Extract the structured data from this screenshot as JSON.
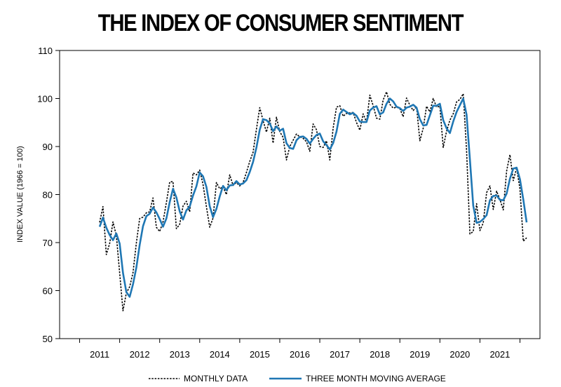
{
  "title": "THE INDEX OF CONSUMER SENTIMENT",
  "chart_data": {
    "type": "line",
    "title": "THE INDEX OF CONSUMER SENTIMENT",
    "xlabel": "",
    "ylabel": "INDEX VALUE (1966 = 100)",
    "ylim": [
      50,
      110
    ],
    "yticks": [
      50,
      60,
      70,
      80,
      90,
      100,
      110
    ],
    "xlim": [
      2010.0,
      2022.0
    ],
    "xticks": [
      "2011",
      "2012",
      "2013",
      "2014",
      "2015",
      "2016",
      "2017",
      "2018",
      "2019",
      "2020",
      "2021"
    ],
    "grid": false,
    "legend_position": "bottom",
    "x": [
      2011.0,
      2011.083,
      2011.167,
      2011.25,
      2011.333,
      2011.417,
      2011.5,
      2011.583,
      2011.667,
      2011.75,
      2011.833,
      2011.917,
      2012.0,
      2012.083,
      2012.167,
      2012.25,
      2012.333,
      2012.417,
      2012.5,
      2012.583,
      2012.667,
      2012.75,
      2012.833,
      2012.917,
      2013.0,
      2013.083,
      2013.167,
      2013.25,
      2013.333,
      2013.417,
      2013.5,
      2013.583,
      2013.667,
      2013.75,
      2013.833,
      2013.917,
      2014.0,
      2014.083,
      2014.167,
      2014.25,
      2014.333,
      2014.417,
      2014.5,
      2014.583,
      2014.667,
      2014.75,
      2014.833,
      2014.917,
      2015.0,
      2015.083,
      2015.167,
      2015.25,
      2015.333,
      2015.417,
      2015.5,
      2015.583,
      2015.667,
      2015.75,
      2015.833,
      2015.917,
      2016.0,
      2016.083,
      2016.167,
      2016.25,
      2016.333,
      2016.417,
      2016.5,
      2016.583,
      2016.667,
      2016.75,
      2016.833,
      2016.917,
      2017.0,
      2017.083,
      2017.167,
      2017.25,
      2017.333,
      2017.417,
      2017.5,
      2017.583,
      2017.667,
      2017.75,
      2017.833,
      2017.917,
      2018.0,
      2018.083,
      2018.167,
      2018.25,
      2018.333,
      2018.417,
      2018.5,
      2018.583,
      2018.667,
      2018.75,
      2018.833,
      2018.917,
      2019.0,
      2019.083,
      2019.167,
      2019.25,
      2019.333,
      2019.417,
      2019.5,
      2019.583,
      2019.667,
      2019.75,
      2019.833,
      2019.917,
      2020.0,
      2020.083,
      2020.167,
      2020.25,
      2020.333,
      2020.417,
      2020.5,
      2020.583,
      2020.667,
      2020.75,
      2020.833,
      2020.917,
      2021.0,
      2021.083,
      2021.167,
      2021.25,
      2021.333,
      2021.417,
      2021.5,
      2021.583,
      2021.667
    ],
    "series": [
      {
        "name": "MONTHLY DATA",
        "style": "dotted",
        "color": "#000000",
        "values": [
          74.2,
          77.5,
          67.5,
          69.8,
          74.3,
          71.5,
          63.7,
          55.8,
          59.5,
          60.8,
          63.7,
          69.9,
          75.0,
          75.3,
          76.2,
          76.4,
          79.3,
          73.2,
          72.3,
          74.3,
          78.3,
          82.6,
          82.7,
          72.9,
          73.8,
          77.6,
          78.6,
          76.4,
          84.5,
          84.1,
          85.1,
          82.1,
          77.5,
          73.2,
          75.1,
          82.5,
          81.2,
          81.6,
          80.0,
          84.1,
          81.9,
          82.5,
          81.8,
          82.5,
          84.6,
          86.9,
          88.8,
          93.6,
          98.1,
          95.4,
          93.0,
          95.9,
          90.7,
          96.1,
          93.1,
          91.9,
          87.2,
          90.0,
          91.3,
          92.6,
          92.0,
          91.7,
          91.0,
          89.0,
          94.7,
          93.5,
          90.0,
          89.8,
          91.2,
          87.2,
          93.8,
          98.2,
          98.5,
          96.3,
          96.9,
          97.0,
          97.1,
          95.0,
          93.4,
          96.8,
          95.1,
          100.7,
          98.5,
          95.9,
          95.7,
          99.7,
          101.4,
          98.8,
          98.0,
          98.2,
          97.9,
          96.2,
          100.1,
          98.6,
          97.5,
          98.3,
          91.2,
          93.8,
          98.4,
          97.2,
          100.0,
          98.2,
          98.4,
          89.8,
          93.2,
          95.5,
          96.8,
          99.3,
          99.8,
          101.0,
          89.1,
          71.8,
          72.3,
          78.1,
          72.5,
          74.1,
          80.4,
          81.8,
          76.9,
          80.7,
          79.0,
          76.8,
          84.9,
          88.3,
          82.9,
          85.5,
          81.2,
          70.3,
          71.0
        ]
      },
      {
        "name": "THREE MONTH MOVING AVERAGE",
        "style": "solid",
        "color": "#1f77b4",
        "values": [
          73.3,
          75.2,
          73.1,
          71.6,
          70.5,
          71.9,
          69.8,
          63.7,
          59.7,
          58.7,
          61.3,
          64.8,
          69.5,
          73.4,
          75.5,
          76.0,
          77.3,
          76.3,
          74.9,
          73.3,
          75.0,
          78.4,
          81.2,
          79.4,
          76.5,
          74.8,
          76.7,
          77.5,
          79.8,
          81.7,
          84.6,
          83.8,
          81.6,
          77.6,
          75.3,
          77.0,
          79.6,
          81.8,
          80.9,
          81.9,
          82.0,
          82.8,
          82.1,
          82.3,
          83.0,
          84.7,
          86.8,
          89.8,
          93.5,
          95.7,
          95.5,
          94.8,
          93.2,
          94.2,
          93.3,
          93.7,
          90.7,
          89.7,
          89.5,
          91.3,
          92.0,
          92.1,
          91.6,
          90.6,
          91.6,
          92.4,
          92.7,
          91.1,
          90.3,
          89.4,
          90.7,
          93.1,
          96.8,
          97.7,
          97.2,
          96.7,
          97.0,
          96.4,
          95.2,
          95.1,
          95.1,
          97.5,
          98.1,
          98.4,
          96.7,
          97.1,
          98.9,
          100.0,
          99.4,
          98.3,
          98.0,
          97.4,
          98.1,
          98.3,
          98.7,
          98.1,
          95.7,
          94.4,
          94.5,
          96.5,
          98.5,
          98.5,
          98.9,
          95.5,
          93.8,
          92.8,
          95.2,
          97.2,
          98.6,
          100.0,
          96.6,
          87.3,
          77.7,
          74.1,
          74.3,
          74.9,
          75.7,
          78.8,
          79.7,
          79.8,
          78.9,
          78.8,
          80.2,
          83.3,
          85.4,
          85.6,
          83.2,
          79.0,
          74.2
        ]
      }
    ]
  }
}
